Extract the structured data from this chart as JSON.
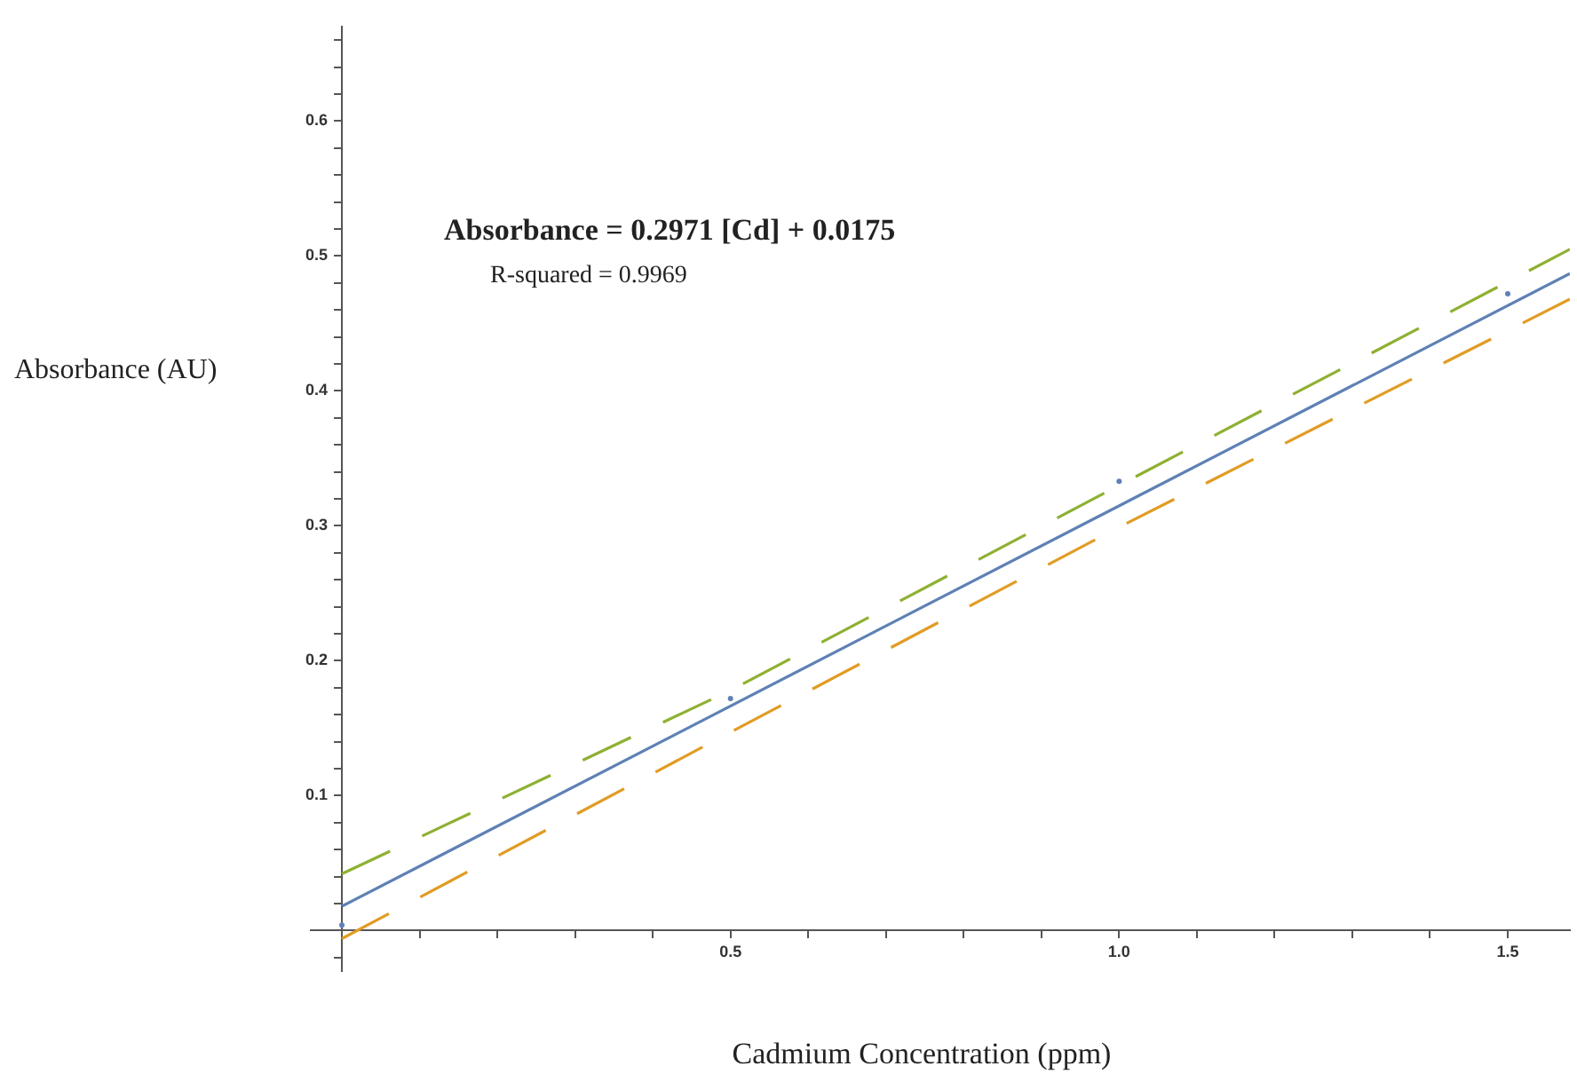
{
  "chart_data": {
    "type": "scatter",
    "xlabel": "Cadmium Concentration (ppm)",
    "ylabel": "Absorbance (AU)",
    "annotations": [
      "Absorbance = 0.2971 [Cd] + 0.0175",
      "R-squared = 0.9969"
    ],
    "xlim": [
      -0.04,
      1.58
    ],
    "ylim": [
      -0.03,
      0.67
    ],
    "xticks": [
      {
        "value": 0.1,
        "label": null
      },
      {
        "value": 0.2,
        "label": null
      },
      {
        "value": 0.3,
        "label": null
      },
      {
        "value": 0.4,
        "label": null
      },
      0.5,
      {
        "value": 0.6,
        "label": null
      },
      {
        "value": 0.7,
        "label": null
      },
      {
        "value": 0.8,
        "label": null
      },
      {
        "value": 0.9,
        "label": null
      },
      {
        "value": 1,
        "label": "1.0"
      },
      {
        "value": 1.1,
        "label": null
      },
      {
        "value": 1.2,
        "label": null
      },
      {
        "value": 1.3,
        "label": null
      },
      {
        "value": 1.4,
        "label": null
      },
      1.5
    ],
    "yticks": [
      {
        "value": -0.02,
        "label": null
      },
      {
        "value": 0.02,
        "label": null
      },
      {
        "value": 0.04,
        "label": null
      },
      {
        "value": 0.06,
        "label": null
      },
      {
        "value": 0.08,
        "label": null
      },
      0.1,
      {
        "value": 0.12,
        "label": null
      },
      {
        "value": 0.14,
        "label": null
      },
      {
        "value": 0.16,
        "label": null
      },
      {
        "value": 0.18,
        "label": null
      },
      0.2,
      {
        "value": 0.22,
        "label": null
      },
      {
        "value": 0.24,
        "label": null
      },
      {
        "value": 0.26,
        "label": null
      },
      {
        "value": 0.28,
        "label": null
      },
      0.3,
      {
        "value": 0.32,
        "label": null
      },
      {
        "value": 0.34,
        "label": null
      },
      {
        "value": 0.36,
        "label": null
      },
      {
        "value": 0.38,
        "label": null
      },
      0.4,
      {
        "value": 0.42,
        "label": null
      },
      {
        "value": 0.44,
        "label": null
      },
      {
        "value": 0.46,
        "label": null
      },
      {
        "value": 0.48,
        "label": null
      },
      0.5,
      {
        "value": 0.52,
        "label": null
      },
      {
        "value": 0.54,
        "label": null
      },
      {
        "value": 0.56,
        "label": null
      },
      {
        "value": 0.58,
        "label": null
      },
      0.6,
      {
        "value": 0.62,
        "label": null
      },
      {
        "value": 0.64,
        "label": null
      },
      {
        "value": 0.66,
        "label": null
      }
    ],
    "grid": false,
    "legend": false,
    "series": [
      {
        "type": "line",
        "color": "#8fb032",
        "line_style": "dashed",
        "marker": "none",
        "x": [
          0,
          0.5,
          1,
          1.58
        ],
        "values": [
          0.042,
          0.178,
          0.33,
          0.505
        ]
      },
      {
        "type": "line",
        "color": "#e19c24",
        "line_style": "dashed",
        "marker": "none",
        "x": [
          0,
          0.5,
          1,
          1.58
        ],
        "values": [
          -0.006,
          0.147,
          0.299,
          0.468
        ]
      },
      {
        "type": "line",
        "color": "#5e81b5",
        "line_style": "solid",
        "marker": "none",
        "x": [
          0,
          1.58
        ],
        "values": [
          0.018,
          0.487
        ]
      },
      {
        "type": "scatter",
        "color": "#5e81b5",
        "marker": "circle",
        "x": [
          0,
          0.5,
          1,
          1.5
        ],
        "values": [
          0.004,
          0.172,
          0.333,
          0.472
        ]
      }
    ]
  }
}
